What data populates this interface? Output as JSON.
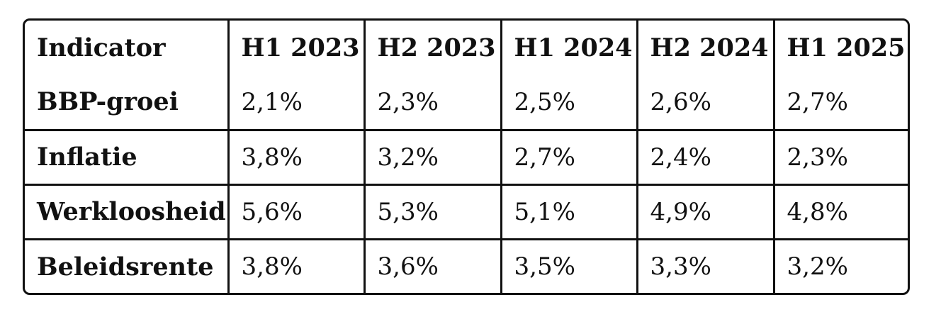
{
  "table": {
    "header": [
      "Indicator",
      "H1 2023",
      "H2 2023",
      "H1 2024",
      "H2 2024",
      "H1 2025"
    ],
    "rows": [
      {
        "label": "BBP-groei",
        "values": [
          "2,1%",
          "2,3%",
          "2,5%",
          "2,6%",
          "2,7%"
        ]
      },
      {
        "label": "Inflatie",
        "values": [
          "3,8%",
          "3,2%",
          "2,7%",
          "2,4%",
          "2,3%"
        ]
      },
      {
        "label": "Werkloosheid",
        "values": [
          "5,6%",
          "5,3%",
          "5,1%",
          "4,9%",
          "4,8%"
        ]
      },
      {
        "label": "Beleidsrente",
        "values": [
          "3,8%",
          "3,6%",
          "3,5%",
          "3,3%",
          "3,2%"
        ]
      }
    ]
  }
}
